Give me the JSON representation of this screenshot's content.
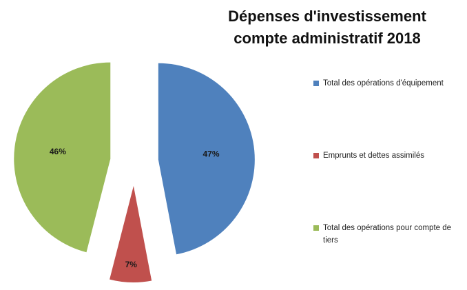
{
  "chart_data": {
    "type": "pie",
    "title": "Dépenses d'investissement compte administratif 2018",
    "categories": [
      "Total des opérations d'équipement",
      "Emprunts et dettes assimilés",
      "Total des opérations pour compte de tiers"
    ],
    "values": [
      47,
      7,
      46
    ],
    "value_labels": [
      "47%",
      "7%",
      "46%"
    ],
    "colors": [
      "#4f81bd",
      "#c0504d",
      "#9bbb59"
    ],
    "legend": "right"
  }
}
